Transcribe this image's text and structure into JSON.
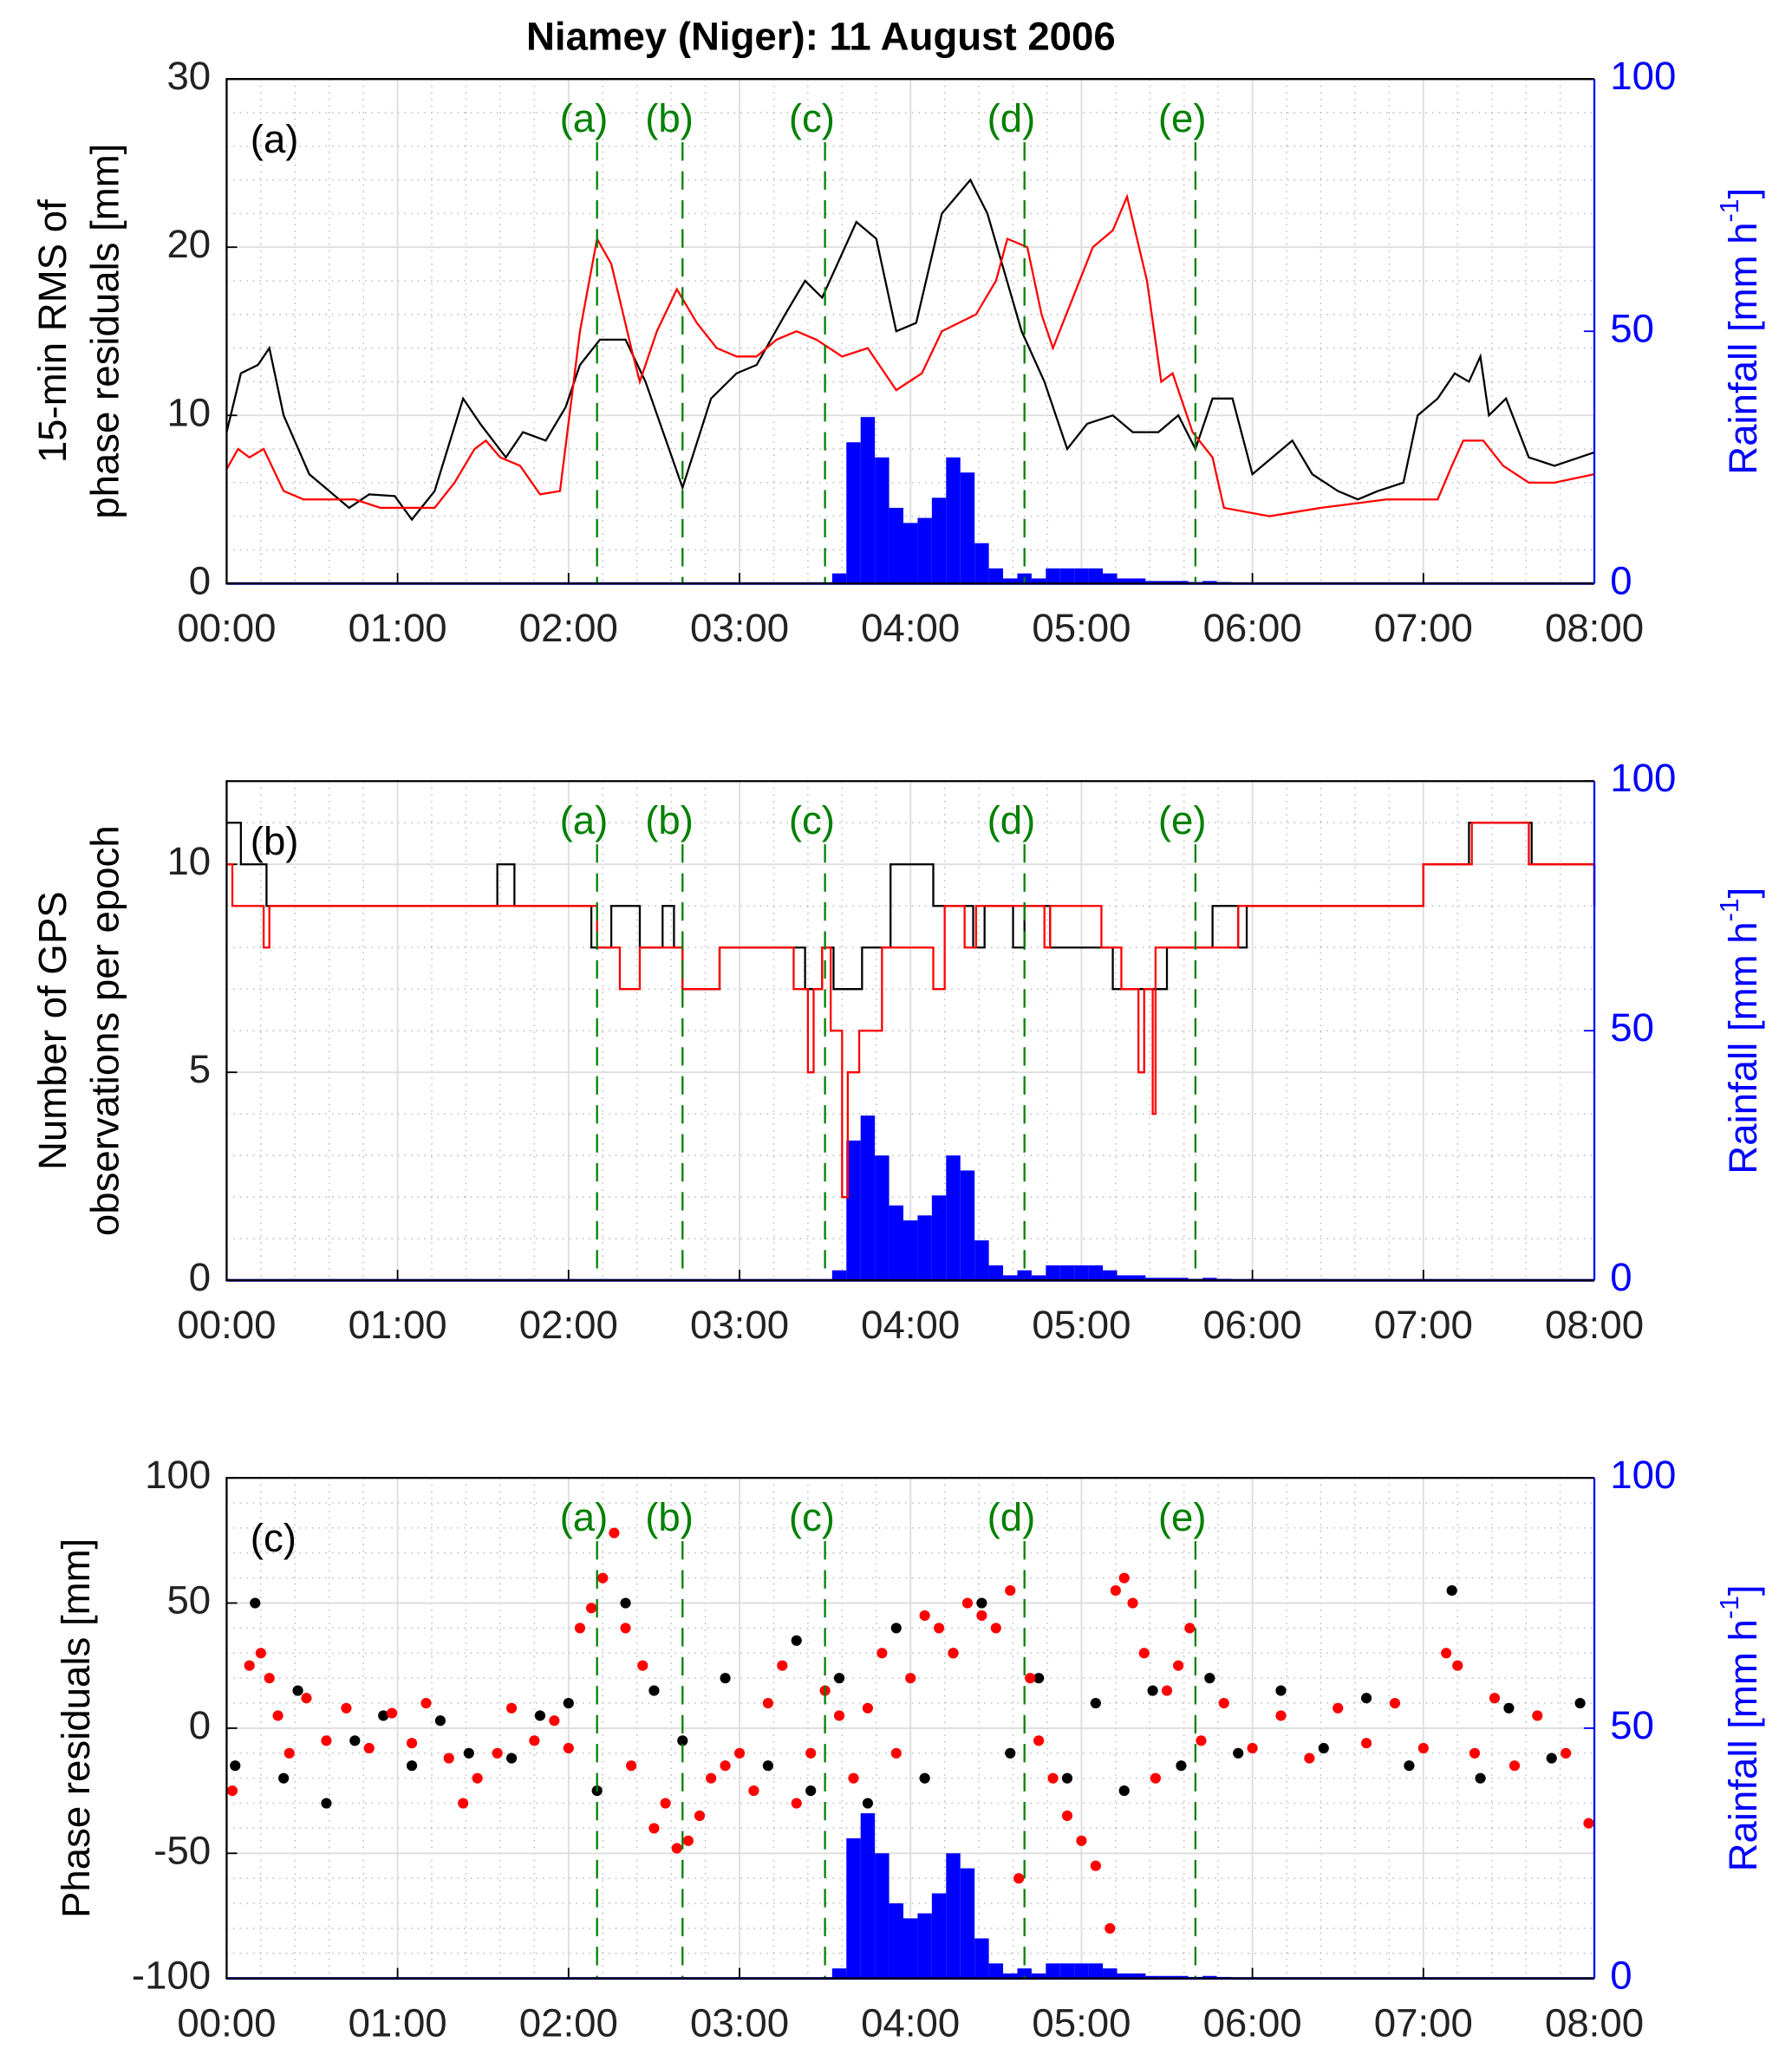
{
  "chart_data": [
    {
      "type": "line",
      "title": "Niamey (Niger): 11 August 2006",
      "panel_label": "(a)",
      "ylabel": [
        "15-min RMS of",
        "phase residuals [mm]"
      ],
      "y2label": [
        "Rainfall [mm h",
        "-1",
        "]"
      ],
      "xlim": [
        0,
        480
      ],
      "xticks": [
        {
          "value": 0,
          "label": "00:00"
        },
        {
          "value": 60,
          "label": "01:00"
        },
        {
          "value": 120,
          "label": "02:00"
        },
        {
          "value": 180,
          "label": "03:00"
        },
        {
          "value": 240,
          "label": "04:00"
        },
        {
          "value": 300,
          "label": "05:00"
        },
        {
          "value": 360,
          "label": "06:00"
        },
        {
          "value": 420,
          "label": "07:00"
        },
        {
          "value": 480,
          "label": "08:00"
        }
      ],
      "ylim": [
        0,
        30
      ],
      "yticks": [
        0,
        10,
        20,
        30
      ],
      "y2lim": [
        0,
        100
      ],
      "y2ticks": [
        0,
        50,
        100
      ],
      "grid": true,
      "markers": {
        "x": [
          130,
          160,
          210,
          280,
          340
        ],
        "labels": [
          "(a)",
          "(b)",
          "(c)",
          "(d)",
          "(e)"
        ],
        "color": "#008000"
      },
      "series": [
        {
          "type": "bar",
          "axis": "y2",
          "color": "#0000ff",
          "x": [
            210,
            215,
            220,
            225,
            230,
            235,
            240,
            245,
            250,
            255,
            260,
            265,
            270,
            275,
            280,
            285,
            290,
            295,
            300,
            305,
            310,
            315,
            320,
            325,
            330,
            335,
            340,
            345,
            350,
            355,
            360
          ],
          "values": [
            0,
            2,
            28,
            33,
            25,
            15,
            12,
            13,
            17,
            25,
            22,
            8,
            3,
            1,
            2,
            1,
            3,
            3,
            3,
            3,
            2,
            1,
            1,
            0.5,
            0.5,
            0.5,
            0.3,
            0.5,
            0.3,
            0.2,
            0
          ]
        },
        {
          "color": "#000000",
          "x": [
            0,
            5,
            11,
            15,
            20,
            29,
            36,
            43,
            50,
            59,
            65,
            73,
            83,
            89,
            98,
            104,
            112,
            119,
            124,
            131,
            140,
            147,
            160,
            170,
            179,
            186,
            196,
            203,
            209,
            221,
            228,
            235,
            242,
            251,
            261,
            267,
            279,
            287,
            295,
            302,
            311,
            318,
            327,
            334,
            340,
            346,
            353,
            360,
            367,
            374,
            381,
            390,
            397,
            404,
            413,
            418,
            425,
            431,
            436,
            440,
            443,
            449,
            457,
            466,
            480
          ],
          "values": [
            9,
            12.5,
            13,
            14,
            10,
            6.5,
            5.5,
            4.5,
            5.3,
            5.2,
            3.8,
            5.5,
            11,
            9.5,
            7.5,
            9,
            8.5,
            10.5,
            13,
            14.5,
            14.5,
            12,
            5.7,
            11,
            12.5,
            13,
            16,
            18,
            17,
            21.5,
            20.5,
            15,
            15.5,
            22,
            24,
            22,
            15,
            12,
            8,
            9.5,
            10,
            9,
            9,
            10,
            8,
            11,
            11,
            6.5,
            7.5,
            8.5,
            6.5,
            5.5,
            5,
            5.5,
            6,
            10,
            11,
            12.5,
            12,
            13.5,
            10,
            11,
            7.5,
            7,
            7.8
          ]
        },
        {
          "color": "#ff0000",
          "x": [
            0,
            4,
            8,
            13,
            20,
            27,
            45,
            54,
            73,
            80,
            87,
            91,
            96,
            103,
            110,
            117,
            124,
            130,
            135,
            142,
            145,
            151,
            158,
            165,
            172,
            179,
            186,
            193,
            200,
            207,
            216,
            225,
            235,
            244,
            251,
            263,
            270,
            274,
            281,
            286,
            290,
            297,
            304,
            311,
            316,
            323,
            328,
            332,
            339,
            346,
            350,
            366,
            384,
            407,
            425,
            430,
            434,
            441,
            448,
            457,
            466,
            480
          ],
          "values": [
            6.8,
            8,
            7.5,
            8,
            5.5,
            5,
            5,
            4.5,
            4.5,
            6,
            8,
            8.5,
            7.5,
            7,
            5.3,
            5.5,
            15,
            20.5,
            19,
            14,
            12,
            15,
            17.5,
            15.5,
            14,
            13.5,
            13.5,
            14.5,
            15,
            14.5,
            13.5,
            14,
            11.5,
            12.5,
            15,
            16,
            18,
            20.5,
            20,
            16,
            14,
            17,
            20,
            21,
            23,
            18,
            12,
            12.5,
            9,
            7.5,
            4.5,
            4,
            4.5,
            5,
            5,
            7,
            8.5,
            8.5,
            7,
            6,
            6,
            6.5
          ]
        }
      ]
    },
    {
      "type": "line",
      "step": true,
      "panel_label": "(b)",
      "ylabel": [
        "Number of GPS",
        "observations per epoch"
      ],
      "y2label": [
        "Rainfall [mm h",
        "-1",
        "]"
      ],
      "xlim": [
        0,
        480
      ],
      "xticks": [
        {
          "value": 0,
          "label": "00:00"
        },
        {
          "value": 60,
          "label": "01:00"
        },
        {
          "value": 120,
          "label": "02:00"
        },
        {
          "value": 180,
          "label": "03:00"
        },
        {
          "value": 240,
          "label": "04:00"
        },
        {
          "value": 300,
          "label": "05:00"
        },
        {
          "value": 360,
          "label": "06:00"
        },
        {
          "value": 420,
          "label": "07:00"
        },
        {
          "value": 480,
          "label": "08:00"
        }
      ],
      "ylim": [
        0,
        12
      ],
      "yticks": [
        0,
        5,
        10
      ],
      "y2lim": [
        0,
        100
      ],
      "y2ticks": [
        0,
        50,
        100
      ],
      "grid": true,
      "markers": {
        "x": [
          130,
          160,
          210,
          280,
          340
        ],
        "labels": [
          "(a)",
          "(b)",
          "(c)",
          "(d)",
          "(e)"
        ],
        "color": "#008000"
      },
      "series": [
        {
          "type": "bar",
          "axis": "y2",
          "color": "#0000ff",
          "x": [
            210,
            215,
            220,
            225,
            230,
            235,
            240,
            245,
            250,
            255,
            260,
            265,
            270,
            275,
            280,
            285,
            290,
            295,
            300,
            305,
            310,
            315,
            320,
            325,
            330,
            335,
            340,
            345,
            350,
            355,
            360
          ],
          "values": [
            0,
            2,
            28,
            33,
            25,
            15,
            12,
            13,
            17,
            25,
            22,
            8,
            3,
            1,
            2,
            1,
            3,
            3,
            3,
            3,
            2,
            1,
            1,
            0.5,
            0.5,
            0.5,
            0.3,
            0.5,
            0.3,
            0.2,
            0
          ]
        },
        {
          "color": "#000000",
          "x": [
            0,
            5,
            14,
            95,
            101,
            128,
            135,
            145,
            153,
            157,
            160,
            173,
            203,
            209,
            213,
            223,
            233,
            248,
            262,
            266,
            276,
            280,
            289,
            311,
            330,
            346,
            355,
            358,
            420,
            436,
            458,
            480
          ],
          "values": [
            11,
            10,
            9,
            10,
            9,
            8,
            9,
            8,
            9,
            8,
            7,
            8,
            7,
            8,
            7,
            8,
            10,
            9,
            8,
            9,
            8,
            9,
            8,
            7,
            8,
            9,
            8,
            9,
            10,
            11,
            10,
            9
          ]
        },
        {
          "color": "#ff0000",
          "x": [
            0,
            2,
            13,
            15,
            130,
            138,
            145,
            160,
            173,
            199,
            204,
            206,
            209,
            212,
            216,
            218,
            222,
            230,
            248,
            252,
            259,
            263,
            287,
            289,
            307,
            314,
            320,
            322,
            325,
            326,
            346,
            355,
            420,
            437,
            457,
            480
          ],
          "values": [
            10,
            9,
            8,
            9,
            8,
            7,
            8,
            7,
            8,
            7,
            5,
            7,
            8,
            6,
            2,
            5,
            6,
            8,
            7,
            9,
            8,
            9,
            8,
            9,
            8,
            7,
            5,
            7,
            4,
            8,
            8,
            9,
            10,
            11,
            10,
            9
          ]
        }
      ]
    },
    {
      "type": "scatter",
      "panel_label": "(c)",
      "ylabel": [
        "Phase residuals [mm]"
      ],
      "y2label": [
        "Rainfall [mm h",
        "-1",
        "]"
      ],
      "xlim": [
        0,
        480
      ],
      "xticks": [
        {
          "value": 0,
          "label": "00:00"
        },
        {
          "value": 60,
          "label": "01:00"
        },
        {
          "value": 120,
          "label": "02:00"
        },
        {
          "value": 180,
          "label": "03:00"
        },
        {
          "value": 240,
          "label": "04:00"
        },
        {
          "value": 300,
          "label": "05:00"
        },
        {
          "value": 360,
          "label": "06:00"
        },
        {
          "value": 420,
          "label": "07:00"
        },
        {
          "value": 480,
          "label": "08:00"
        }
      ],
      "ylim": [
        -100,
        100
      ],
      "yticks": [
        -100,
        -50,
        0,
        50,
        100
      ],
      "y2lim": [
        0,
        100
      ],
      "y2ticks": [
        0,
        50,
        100
      ],
      "grid": true,
      "markers": {
        "x": [
          130,
          160,
          210,
          280,
          340
        ],
        "labels": [
          "(a)",
          "(b)",
          "(c)",
          "(d)",
          "(e)"
        ],
        "color": "#008000"
      },
      "series": [
        {
          "type": "bar",
          "axis": "y2",
          "color": "#0000ff",
          "x": [
            210,
            215,
            220,
            225,
            230,
            235,
            240,
            245,
            250,
            255,
            260,
            265,
            270,
            275,
            280,
            285,
            290,
            295,
            300,
            305,
            310,
            315,
            320,
            325,
            330,
            335,
            340,
            345,
            350,
            355,
            360
          ],
          "values": [
            0,
            2,
            28,
            33,
            25,
            15,
            12,
            13,
            17,
            25,
            22,
            8,
            3,
            1,
            2,
            1,
            3,
            3,
            3,
            3,
            2,
            1,
            1,
            0.5,
            0.5,
            0.5,
            0.3,
            0.5,
            0.3,
            0.2,
            0
          ]
        },
        {
          "color": "#000000",
          "x": [
            3,
            10,
            20,
            25,
            35,
            45,
            55,
            65,
            75,
            85,
            100,
            110,
            120,
            130,
            140,
            150,
            160,
            175,
            190,
            200,
            205,
            215,
            225,
            235,
            245,
            255,
            265,
            275,
            285,
            295,
            305,
            315,
            325,
            335,
            345,
            355,
            370,
            385,
            400,
            415,
            430,
            440,
            450,
            465,
            475
          ],
          "values": [
            -15,
            50,
            -20,
            15,
            -30,
            -5,
            5,
            -15,
            3,
            -10,
            -12,
            5,
            10,
            -25,
            50,
            15,
            -5,
            20,
            -15,
            35,
            -25,
            20,
            -30,
            40,
            -20,
            30,
            50,
            -10,
            20,
            -20,
            10,
            -25,
            15,
            -15,
            20,
            -10,
            15,
            -8,
            12,
            -15,
            55,
            -20,
            8,
            -12,
            10
          ]
        },
        {
          "color": "#ff0000",
          "x": [
            2,
            8,
            12,
            15,
            18,
            22,
            28,
            35,
            42,
            50,
            58,
            65,
            70,
            78,
            83,
            88,
            95,
            100,
            108,
            115,
            120,
            124,
            128,
            132,
            136,
            140,
            142,
            146,
            150,
            154,
            158,
            162,
            166,
            170,
            175,
            180,
            185,
            190,
            195,
            200,
            205,
            210,
            215,
            220,
            225,
            230,
            235,
            240,
            245,
            250,
            255,
            260,
            265,
            270,
            275,
            278,
            282,
            285,
            290,
            295,
            300,
            305,
            310,
            312,
            315,
            318,
            322,
            326,
            330,
            334,
            338,
            342,
            350,
            360,
            370,
            380,
            390,
            400,
            410,
            420,
            428,
            432,
            438,
            445,
            452,
            460,
            470,
            478
          ],
          "values": [
            -25,
            25,
            30,
            20,
            5,
            -10,
            12,
            -5,
            8,
            -8,
            6,
            -6,
            10,
            -12,
            -30,
            -20,
            -10,
            8,
            -5,
            3,
            -8,
            40,
            48,
            60,
            78,
            40,
            -15,
            25,
            -40,
            -30,
            -48,
            -45,
            -35,
            -20,
            -15,
            -10,
            -25,
            10,
            25,
            -30,
            -10,
            15,
            5,
            -20,
            8,
            30,
            -10,
            20,
            45,
            40,
            30,
            50,
            45,
            40,
            55,
            -60,
            20,
            -5,
            -20,
            -35,
            -45,
            -55,
            -80,
            55,
            60,
            50,
            30,
            -20,
            15,
            25,
            40,
            -5,
            10,
            -8,
            5,
            -12,
            8,
            -6,
            10,
            -8,
            30,
            25,
            -10,
            12,
            -15,
            5,
            -10,
            -38
          ]
        }
      ]
    }
  ]
}
